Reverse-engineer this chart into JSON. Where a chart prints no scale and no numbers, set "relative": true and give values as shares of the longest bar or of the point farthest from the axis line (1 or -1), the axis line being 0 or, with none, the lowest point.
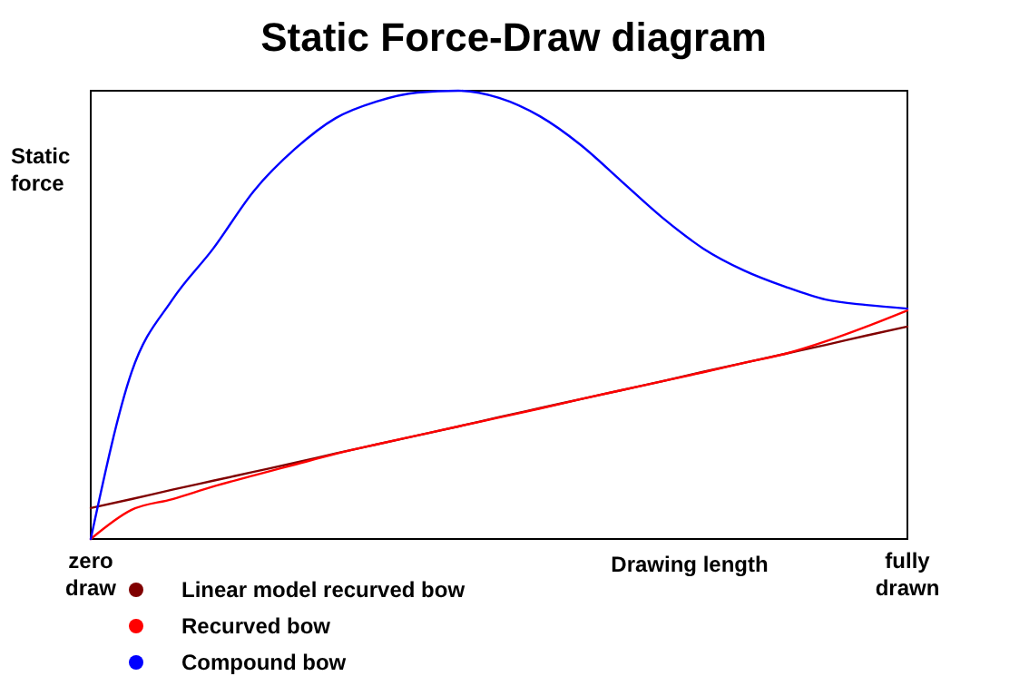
{
  "chart_data": {
    "type": "line",
    "title": "Static Force-Draw diagram",
    "xlabel": "Drawing length",
    "ylabel": "Static force",
    "relative": true,
    "legend": "bottom left",
    "line_style": "solid",
    "grid": false,
    "categories": [
      "zero draw",
      null,
      null,
      null,
      null,
      null,
      null,
      null,
      null,
      null,
      null,
      null,
      null,
      null,
      null,
      null,
      null,
      null,
      null,
      null,
      "fully drawn"
    ],
    "series": [
      {
        "name": "Linear model recurved bow",
        "color": "#800000",
        "values": [
          0.069,
          0.089,
          0.11,
          0.13,
          0.15,
          0.17,
          0.191,
          0.211,
          0.231,
          0.251,
          0.272,
          0.292,
          0.312,
          0.332,
          0.352,
          0.373,
          0.393,
          0.413,
          0.433,
          0.454,
          0.474
        ]
      },
      {
        "name": "Recurved bow",
        "color": "#ff0000",
        "values": [
          0,
          0.065,
          0.089,
          0.117,
          0.142,
          0.166,
          0.19,
          0.211,
          0.231,
          0.251,
          0.271,
          0.291,
          0.312,
          0.332,
          0.352,
          0.372,
          0.393,
          0.413,
          0.441,
          0.474,
          0.51
        ]
      },
      {
        "name": "Compound bow",
        "color": "#0000ff",
        "values": [
          0,
          0.372,
          0.534,
          0.648,
          0.777,
          0.87,
          0.939,
          0.976,
          0.996,
          1,
          0.984,
          0.943,
          0.879,
          0.798,
          0.717,
          0.648,
          0.599,
          0.563,
          0.534,
          0.522,
          0.514
        ]
      }
    ]
  }
}
